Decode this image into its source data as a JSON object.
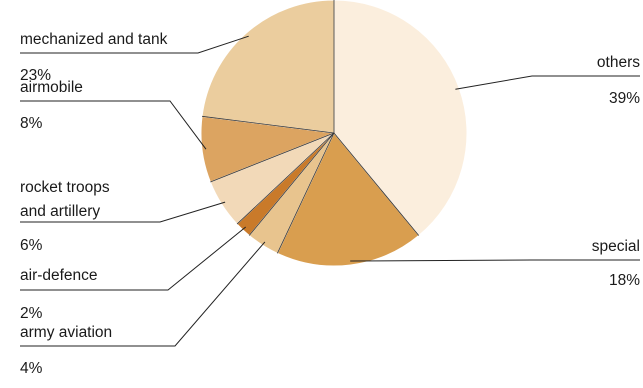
{
  "chart_data": {
    "type": "pie",
    "slices": [
      {
        "label": "others",
        "value": 39,
        "value_label": "39%",
        "color": "#fbeedd"
      },
      {
        "label": "special",
        "value": 18,
        "value_label": "18%",
        "color": "#d99e4f"
      },
      {
        "label": "army aviation",
        "value": 4,
        "value_label": "4%",
        "color": "#e8c48e"
      },
      {
        "label": "air-defence",
        "value": 2,
        "value_label": "2%",
        "color": "#c97a2a"
      },
      {
        "label": "rocket troops\nand artillery",
        "value": 6,
        "value_label": "6%",
        "color": "#f2d9b8"
      },
      {
        "label": "airmobile",
        "value": 8,
        "value_label": "8%",
        "color": "#dca461"
      },
      {
        "label": "mechanized and tank",
        "value": 23,
        "value_label": "23%",
        "color": "#ebcd9e"
      }
    ]
  }
}
